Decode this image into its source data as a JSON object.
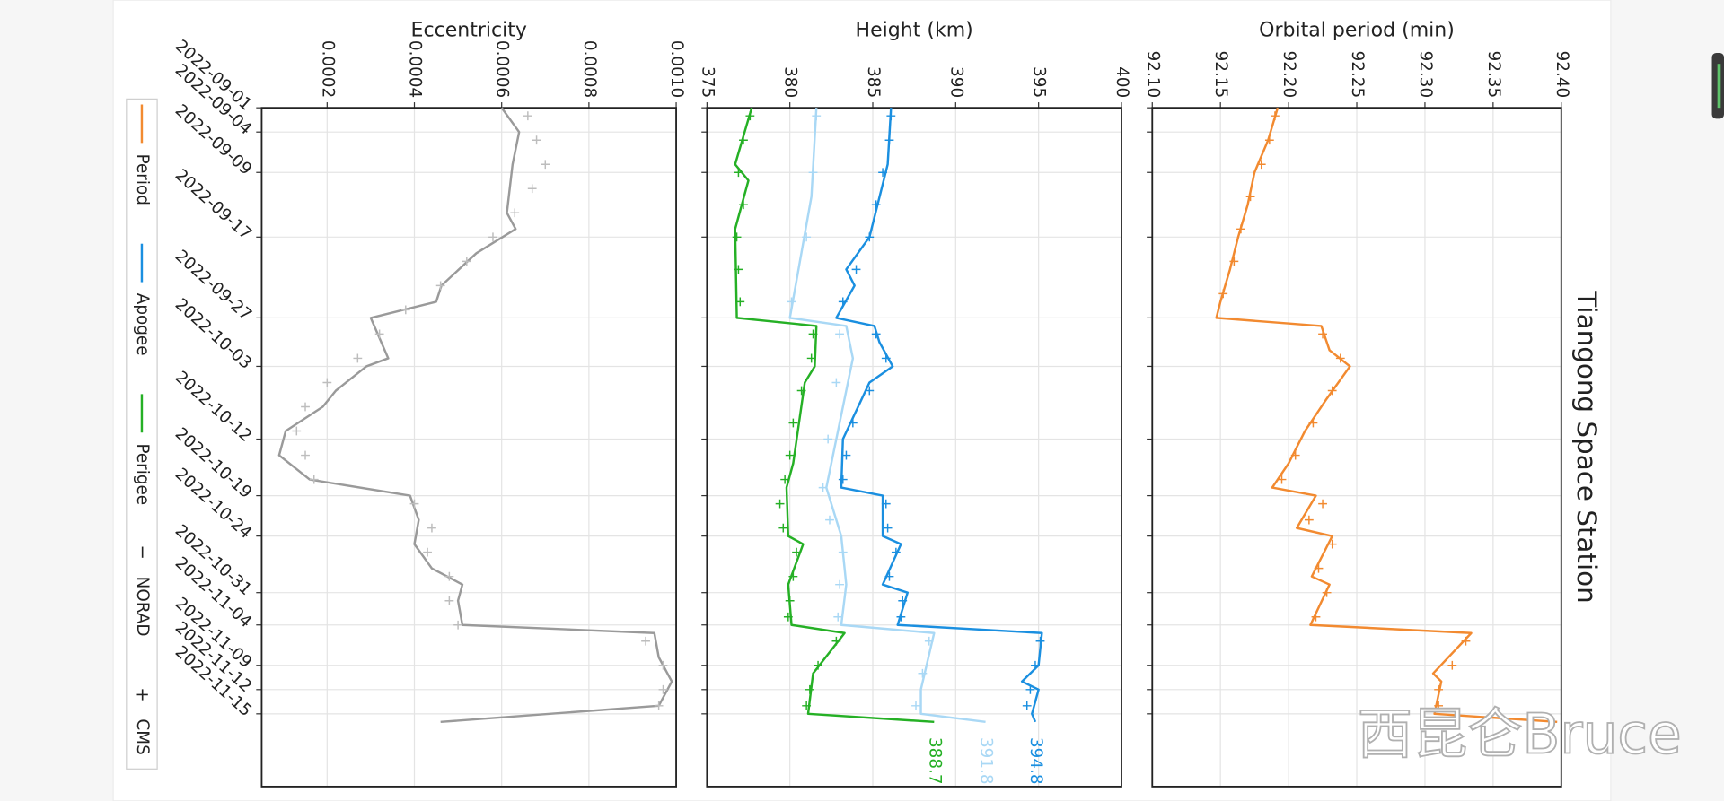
{
  "chart_data": {
    "type": "line",
    "title": "Tiangong Space Station",
    "watermark": "西昆仑Bruce",
    "grid": true,
    "xlim": [
      "2022-09-01",
      "2022-11-24"
    ],
    "xticks": [
      "2022-09-01",
      "2022-09-04",
      "2022-09-09",
      "2022-09-17",
      "2022-09-27",
      "2022-10-03",
      "2022-10-12",
      "2022-10-19",
      "2022-10-24",
      "2022-10-31",
      "2022-11-04",
      "2022-11-09",
      "2022-11-12",
      "2022-11-15"
    ],
    "legend_styles": [
      {
        "symbol": "−",
        "label": "NORAD"
      },
      {
        "symbol": "+",
        "label": "CMS"
      }
    ],
    "panels": [
      {
        "ylabel": "Orbital period (min)",
        "ylim": [
          92.1,
          92.4
        ],
        "yticks": [
          {
            "value": 92.1,
            "label": "92.10"
          },
          92.15,
          {
            "value": 92.2,
            "label": "92.20"
          },
          92.25,
          {
            "value": 92.3,
            "label": "92.30"
          },
          92.35,
          {
            "value": 92.4,
            "label": "92.40"
          }
        ],
        "series": [
          {
            "name": "Period",
            "color": "#f28a30",
            "marker": "line",
            "x": [
              "2022-09-01",
              "2022-09-05",
              "2022-09-09",
              "2022-09-13",
              "2022-09-17",
              "2022-09-21",
              "2022-09-25",
              "2022-09-27",
              "2022-09-28",
              "2022-10-01",
              "2022-10-03",
              "2022-10-07",
              "2022-10-11",
              "2022-10-15",
              "2022-10-18",
              "2022-10-19",
              "2022-10-23",
              "2022-10-24",
              "2022-10-29",
              "2022-10-30",
              "2022-11-04",
              "2022-11-05",
              "2022-11-10",
              "2022-11-11",
              "2022-11-15",
              "2022-11-16"
            ],
            "values": [
              92.192,
              92.185,
              92.175,
              92.17,
              92.163,
              92.157,
              92.15,
              92.147,
              92.224,
              92.23,
              92.245,
              92.228,
              92.212,
              92.2,
              92.188,
              92.22,
              92.206,
              92.232,
              92.217,
              92.23,
              92.216,
              92.334,
              92.306,
              92.312,
              92.307,
              92.397
            ]
          },
          {
            "color": "#f28a30",
            "marker": "plus",
            "x": [
              "2022-09-02",
              "2022-09-05",
              "2022-09-08",
              "2022-09-12",
              "2022-09-16",
              "2022-09-20",
              "2022-09-24",
              "2022-09-29",
              "2022-10-02",
              "2022-10-06",
              "2022-10-10",
              "2022-10-14",
              "2022-10-17",
              "2022-10-20",
              "2022-10-22",
              "2022-10-25",
              "2022-10-28",
              "2022-10-31",
              "2022-11-03",
              "2022-11-06",
              "2022-11-09",
              "2022-11-12",
              "2022-11-14"
            ],
            "values": [
              92.19,
              92.186,
              92.18,
              92.172,
              92.165,
              92.16,
              92.152,
              92.225,
              92.238,
              92.232,
              92.218,
              92.205,
              92.195,
              92.225,
              92.215,
              92.232,
              92.222,
              92.228,
              92.22,
              92.33,
              92.32,
              92.31,
              92.31
            ]
          }
        ]
      },
      {
        "ylabel": "Height (km)",
        "ylim": [
          375,
          400
        ],
        "yticks": [
          375,
          380,
          385,
          390,
          395,
          400
        ],
        "series": [
          {
            "name": "Apogee",
            "color": "#1a8fe0",
            "marker": "line",
            "end_label": true,
            "x": [
              "2022-09-01",
              "2022-09-08",
              "2022-09-17",
              "2022-09-21",
              "2022-09-23",
              "2022-09-27",
              "2022-09-28",
              "2022-09-30",
              "2022-10-03",
              "2022-10-05",
              "2022-10-12",
              "2022-10-18",
              "2022-10-19",
              "2022-10-24",
              "2022-10-25",
              "2022-10-30",
              "2022-10-31",
              "2022-11-04",
              "2022-11-05",
              "2022-11-09",
              "2022-11-11",
              "2022-11-12",
              "2022-11-15",
              "2022-11-16"
            ],
            "values": [
              386.1,
              385.9,
              384.8,
              383.4,
              383.9,
              382.8,
              385.1,
              385.4,
              386.2,
              384.8,
              383.2,
              383.1,
              385.6,
              385.6,
              386.7,
              385.6,
              387.1,
              386.5,
              395.2,
              395.0,
              394.0,
              395.0,
              394.6,
              394.8
            ]
          },
          {
            "color": "#1a8fe0",
            "marker": "plus",
            "x": [
              "2022-09-02",
              "2022-09-05",
              "2022-09-09",
              "2022-09-13",
              "2022-09-17",
              "2022-09-21",
              "2022-09-25",
              "2022-09-29",
              "2022-10-02",
              "2022-10-06",
              "2022-10-10",
              "2022-10-14",
              "2022-10-17",
              "2022-10-20",
              "2022-10-23",
              "2022-10-26",
              "2022-10-29",
              "2022-11-01",
              "2022-11-03",
              "2022-11-06",
              "2022-11-09",
              "2022-11-12",
              "2022-11-14"
            ],
            "values": [
              386.1,
              386.0,
              385.6,
              385.2,
              384.8,
              384.0,
              383.2,
              385.2,
              385.8,
              384.8,
              383.8,
              383.4,
              383.2,
              385.8,
              385.9,
              386.4,
              386.0,
              386.8,
              386.7,
              395.1,
              394.8,
              394.5,
              394.3
            ]
          },
          {
            "color": "#a9d8f5",
            "marker": "line",
            "end_label": true,
            "x": [
              "2022-09-01",
              "2022-09-12",
              "2022-09-27",
              "2022-09-28",
              "2022-10-02",
              "2022-10-18",
              "2022-10-24",
              "2022-10-30",
              "2022-11-04",
              "2022-11-05",
              "2022-11-12",
              "2022-11-15",
              "2022-11-16"
            ],
            "values": [
              381.6,
              381.3,
              380.0,
              383.4,
              383.8,
              382.2,
              383.1,
              383.4,
              383.1,
              388.7,
              387.9,
              387.9,
              391.8
            ]
          },
          {
            "color": "#a9d8f5",
            "marker": "plus",
            "x": [
              "2022-09-02",
              "2022-09-09",
              "2022-09-17",
              "2022-09-25",
              "2022-09-29",
              "2022-10-05",
              "2022-10-12",
              "2022-10-18",
              "2022-10-22",
              "2022-10-26",
              "2022-10-30",
              "2022-11-03",
              "2022-11-06",
              "2022-11-10",
              "2022-11-14"
            ],
            "values": [
              381.6,
              381.4,
              381.0,
              380.1,
              383.0,
              382.8,
              382.3,
              382.0,
              382.4,
              383.2,
              383.0,
              382.9,
              388.4,
              388.0,
              387.6
            ]
          },
          {
            "name": "Perigee",
            "color": "#25b025",
            "marker": "line",
            "end_label": true,
            "x": [
              "2022-09-01",
              "2022-09-08",
              "2022-09-10",
              "2022-09-16",
              "2022-09-27",
              "2022-09-28",
              "2022-10-03",
              "2022-10-05",
              "2022-10-15",
              "2022-10-18",
              "2022-10-24",
              "2022-10-25",
              "2022-10-30",
              "2022-11-04",
              "2022-11-05",
              "2022-11-10",
              "2022-11-15",
              "2022-11-16"
            ],
            "values": [
              377.7,
              376.7,
              377.5,
              376.7,
              376.8,
              381.6,
              381.5,
              380.9,
              380.2,
              379.8,
              379.9,
              380.8,
              379.9,
              380.1,
              383.3,
              381.4,
              381.1,
              388.7
            ]
          },
          {
            "color": "#25b025",
            "marker": "plus",
            "x": [
              "2022-09-02",
              "2022-09-05",
              "2022-09-09",
              "2022-09-13",
              "2022-09-17",
              "2022-09-21",
              "2022-09-25",
              "2022-09-29",
              "2022-10-02",
              "2022-10-06",
              "2022-10-10",
              "2022-10-14",
              "2022-10-17",
              "2022-10-20",
              "2022-10-23",
              "2022-10-26",
              "2022-10-29",
              "2022-11-01",
              "2022-11-03",
              "2022-11-06",
              "2022-11-09",
              "2022-11-12",
              "2022-11-14"
            ],
            "values": [
              377.6,
              377.2,
              376.9,
              377.2,
              376.8,
              376.9,
              377.0,
              381.4,
              381.3,
              380.7,
              380.2,
              380.0,
              379.7,
              379.4,
              379.6,
              380.4,
              380.2,
              380.0,
              379.9,
              382.8,
              381.7,
              381.2,
              381.0
            ]
          }
        ]
      },
      {
        "ylabel": "Eccentricity",
        "ylim": [
          5e-05,
          0.001
        ],
        "yticks": [
          0.0002,
          0.0004,
          0.0006,
          0.0008,
          {
            "value": 0.001,
            "label": "0.0010"
          }
        ],
        "series": [
          {
            "color": "#9a9a9a",
            "marker": "line",
            "x": [
              "2022-09-01",
              "2022-09-04",
              "2022-09-08",
              "2022-09-14",
              "2022-09-16",
              "2022-09-19",
              "2022-09-23",
              "2022-09-25",
              "2022-09-27",
              "2022-10-02",
              "2022-10-03",
              "2022-10-06",
              "2022-10-08",
              "2022-10-11",
              "2022-10-14",
              "2022-10-17",
              "2022-10-19",
              "2022-10-22",
              "2022-10-25",
              "2022-10-28",
              "2022-10-30",
              "2022-11-01",
              "2022-11-04",
              "2022-11-05",
              "2022-11-08",
              "2022-11-11",
              "2022-11-14",
              "2022-11-16"
            ],
            "values": [
              0.0006,
              0.00064,
              0.000625,
              0.000612,
              0.000632,
              0.000542,
              0.000462,
              0.00045,
              0.0003,
              0.00034,
              0.00029,
              0.00022,
              0.00019,
              0.000105,
              9e-05,
              0.00016,
              0.00039,
              0.00041,
              0.0004,
              0.00044,
              0.00051,
              0.0005,
              0.00051,
              0.00095,
              0.00096,
              0.00099,
              0.00096,
              0.00046
            ]
          },
          {
            "color": "#bdbdbd",
            "marker": "plus",
            "x": [
              "2022-09-02",
              "2022-09-05",
              "2022-09-08",
              "2022-09-11",
              "2022-09-14",
              "2022-09-17",
              "2022-09-20",
              "2022-09-23",
              "2022-09-26",
              "2022-09-29",
              "2022-10-02",
              "2022-10-05",
              "2022-10-08",
              "2022-10-11",
              "2022-10-14",
              "2022-10-17",
              "2022-10-20",
              "2022-10-23",
              "2022-10-26",
              "2022-10-29",
              "2022-11-01",
              "2022-11-04",
              "2022-11-06",
              "2022-11-09",
              "2022-11-12",
              "2022-11-14"
            ],
            "values": [
              0.00066,
              0.00068,
              0.0007,
              0.00067,
              0.00063,
              0.00058,
              0.00052,
              0.00046,
              0.00038,
              0.00032,
              0.00027,
              0.0002,
              0.00015,
              0.00013,
              0.00015,
              0.00017,
              0.0004,
              0.00044,
              0.00043,
              0.00048,
              0.00048,
              0.0005,
              0.00093,
              0.00097,
              0.00097,
              0.00096
            ]
          }
        ]
      }
    ]
  }
}
